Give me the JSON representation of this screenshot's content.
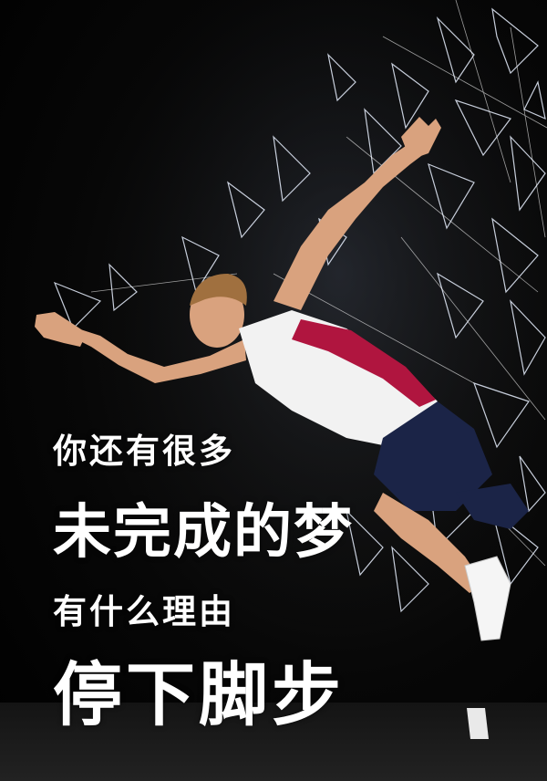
{
  "poster": {
    "line1": "你还有很多",
    "line2": "未完成的梦",
    "line3": "有什么理由",
    "line4": "停下脚步"
  },
  "colors": {
    "background": "#000000",
    "text": "#ffffff",
    "jersey_red": "#b0153f",
    "jersey_white": "#f2f2f2",
    "shorts": "#1b2447",
    "skin": "#d9a27e",
    "glass": "#e8f0ff"
  }
}
